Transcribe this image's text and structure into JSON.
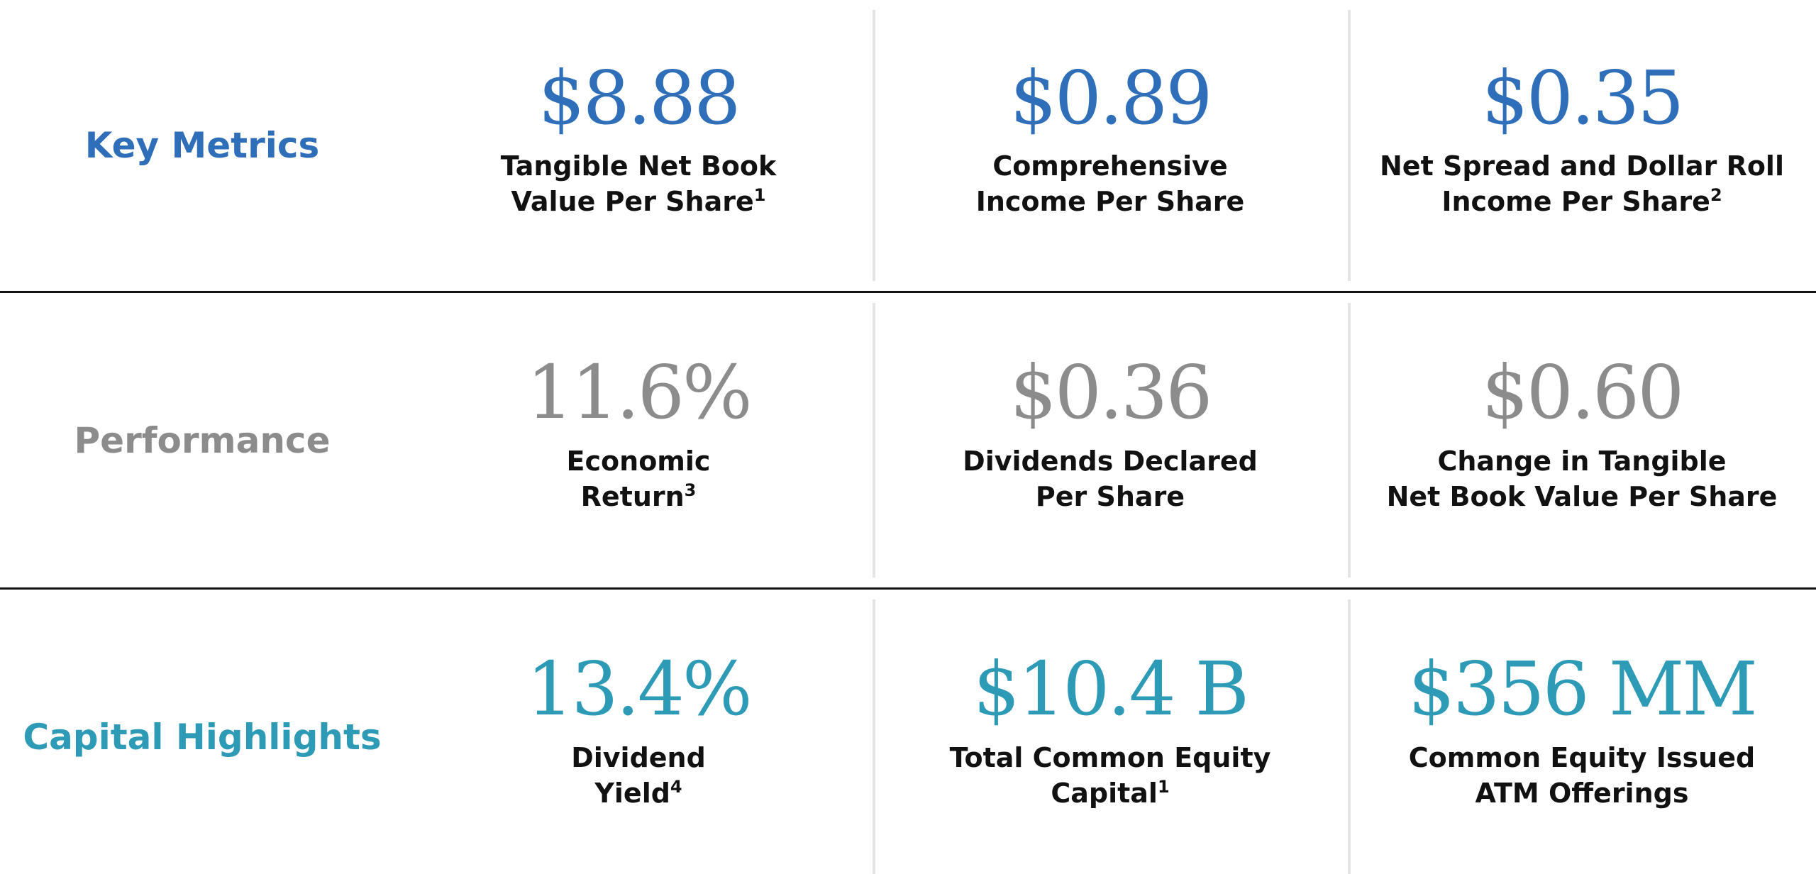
{
  "rows": [
    {
      "label": "Key Metrics",
      "color": "#2f6fba",
      "items": [
        {
          "value": "$8.88",
          "lines": [
            "Tangible Net Book",
            "Value Per Share"
          ],
          "note": "1"
        },
        {
          "value": "$0.89",
          "lines": [
            "Comprehensive",
            "Income Per Share"
          ]
        },
        {
          "value": "$0.35",
          "lines": [
            "Net Spread and Dollar Roll",
            "Income Per Share"
          ],
          "note": "2"
        }
      ]
    },
    {
      "label": "Performance",
      "color": "#8c8c8c",
      "items": [
        {
          "value": "11.6%",
          "lines": [
            "Economic",
            "Return"
          ],
          "note": "3"
        },
        {
          "value": "$0.36",
          "lines": [
            "Dividends Declared",
            "Per Share"
          ]
        },
        {
          "value": "$0.60",
          "lines": [
            "Change in Tangible",
            "Net Book Value Per Share"
          ]
        }
      ]
    },
    {
      "label": "Capital Highlights",
      "color": "#2e9bb6",
      "items": [
        {
          "value": "13.4%",
          "lines": [
            "Dividend",
            "Yield"
          ],
          "note": "4"
        },
        {
          "value": "$10.4 B",
          "lines": [
            "Total Common Equity",
            "Capital"
          ],
          "note": "1"
        },
        {
          "value": "$356 MM",
          "lines": [
            "Common Equity Issued",
            "ATM Offerings"
          ]
        }
      ]
    }
  ]
}
